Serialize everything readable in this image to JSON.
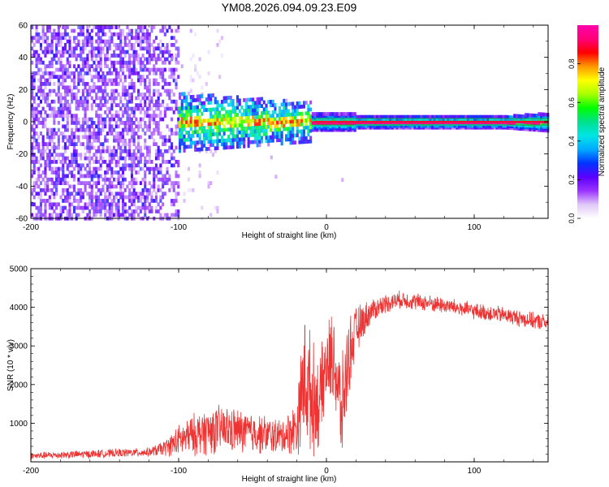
{
  "title": "YM08.2026.094.09.23.E09",
  "chart_data": [
    {
      "type": "heatmap",
      "title": "",
      "xlabel": "Height of straight line (km)",
      "ylabel": "Frequency (Hz)",
      "xlim": [
        -200,
        150
      ],
      "ylim": [
        -60,
        60
      ],
      "xticks": [
        -200,
        -100,
        0,
        100
      ],
      "xtick_labels": [
        "-200",
        "-100",
        "0",
        "100"
      ],
      "yticks": [
        60,
        40,
        20,
        0,
        -20,
        -40,
        -60
      ],
      "ytick_labels": [
        "60",
        "40",
        "20",
        "0",
        "-20",
        "-40",
        "-60"
      ],
      "colorbar": {
        "label": "Normalized spectral amplitude",
        "range": [
          0,
          1
        ],
        "ticks": [
          0.0,
          0.2,
          0.4,
          0.6,
          0.8
        ],
        "tick_labels": [
          "0.0",
          "0.2",
          "0.4",
          "0.6",
          "0.8"
        ],
        "colors": [
          "#ffffff",
          "#e0c8f8",
          "#9a33ff",
          "#5a00ff",
          "#0033ff",
          "#00aaff",
          "#00e5e5",
          "#00e08c",
          "#00ff00",
          "#a8ff00",
          "#ffff00",
          "#ff9900",
          "#ff0000",
          "#ff0077",
          "#ff00aa"
        ]
      },
      "regions": [
        {
          "name": "broadband noise",
          "x_range": [
            -200,
            -100
          ],
          "freq_range": [
            -60,
            60
          ],
          "amplitude": 0.15
        },
        {
          "name": "narrowing band",
          "x_range": [
            -100,
            -10
          ],
          "freq_range": [
            -12,
            12
          ],
          "amplitude": 0.35
        },
        {
          "name": "tonal line",
          "x_range": [
            -10,
            150
          ],
          "freq_center": 0,
          "amplitude": 0.95
        }
      ]
    },
    {
      "type": "line",
      "title": "",
      "xlabel": "Height of straight line (km)",
      "ylabel": "SNR (10 * v/v)",
      "xlim": [
        -200,
        150
      ],
      "ylim": [
        0,
        5000
      ],
      "xticks": [
        -200,
        -100,
        0,
        100
      ],
      "xtick_labels": [
        "-200",
        "-100",
        "0",
        "100"
      ],
      "yticks": [
        1000,
        2000,
        3000,
        4000,
        5000
      ],
      "ytick_labels": [
        "1000",
        "2000",
        "3000",
        "4000",
        "5000"
      ],
      "series": [
        {
          "name": "SNR",
          "color": "#ee3333",
          "x": [
            -200,
            -180,
            -160,
            -140,
            -120,
            -110,
            -100,
            -90,
            -80,
            -70,
            -60,
            -50,
            -40,
            -30,
            -20,
            -15,
            -10,
            -5,
            0,
            5,
            10,
            15,
            20,
            30,
            40,
            50,
            60,
            80,
            100,
            120,
            140,
            150
          ],
          "y": [
            150,
            180,
            200,
            230,
            250,
            350,
            550,
            700,
            800,
            850,
            800,
            750,
            700,
            650,
            900,
            2200,
            1700,
            1500,
            2500,
            2700,
            1200,
            2700,
            3400,
            3900,
            4100,
            4200,
            4150,
            4050,
            3900,
            3800,
            3650,
            3600
          ],
          "spread": [
            100,
            110,
            120,
            120,
            130,
            220,
            450,
            600,
            700,
            700,
            650,
            600,
            550,
            500,
            800,
            2000,
            1700,
            1300,
            1200,
            1400,
            1500,
            1200,
            700,
            350,
            280,
            250,
            250,
            240,
            240,
            240,
            240,
            240
          ]
        }
      ]
    }
  ]
}
